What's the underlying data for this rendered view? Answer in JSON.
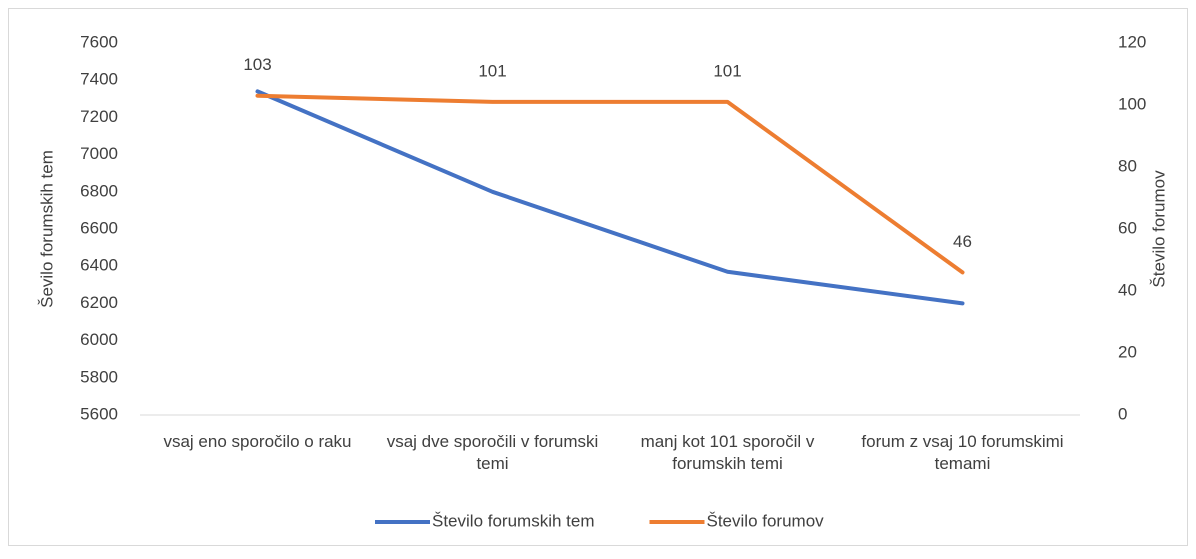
{
  "chart_data": {
    "type": "line",
    "categories": [
      "vsaj eno sporočilo o raku",
      "vsaj dve sporočili v forumski temi",
      "manj kot 101 sporočil v forumskih temi",
      "forum z vsaj 10 forumskimi temami"
    ],
    "series": [
      {
        "name": "Število forumskih tem",
        "color": "#4472c4",
        "values": [
          7340,
          6800,
          6370,
          6200
        ]
      },
      {
        "name": "Število forumov",
        "color": "#ed7d31",
        "axis": "y2",
        "values": [
          103,
          101,
          101,
          46
        ],
        "data_labels": true
      }
    ],
    "ylabel": "Ševilo forumskih tem",
    "y2label": "Število forumov",
    "ylim": [
      5600,
      7600
    ],
    "yticks": [
      5600,
      5800,
      6000,
      6200,
      6400,
      6600,
      6800,
      7000,
      7200,
      7400,
      7600
    ],
    "y2lim": [
      0,
      120
    ],
    "y2ticks": [
      0,
      20,
      40,
      60,
      80,
      100,
      120
    ],
    "grid": false,
    "legend": "bottom"
  }
}
